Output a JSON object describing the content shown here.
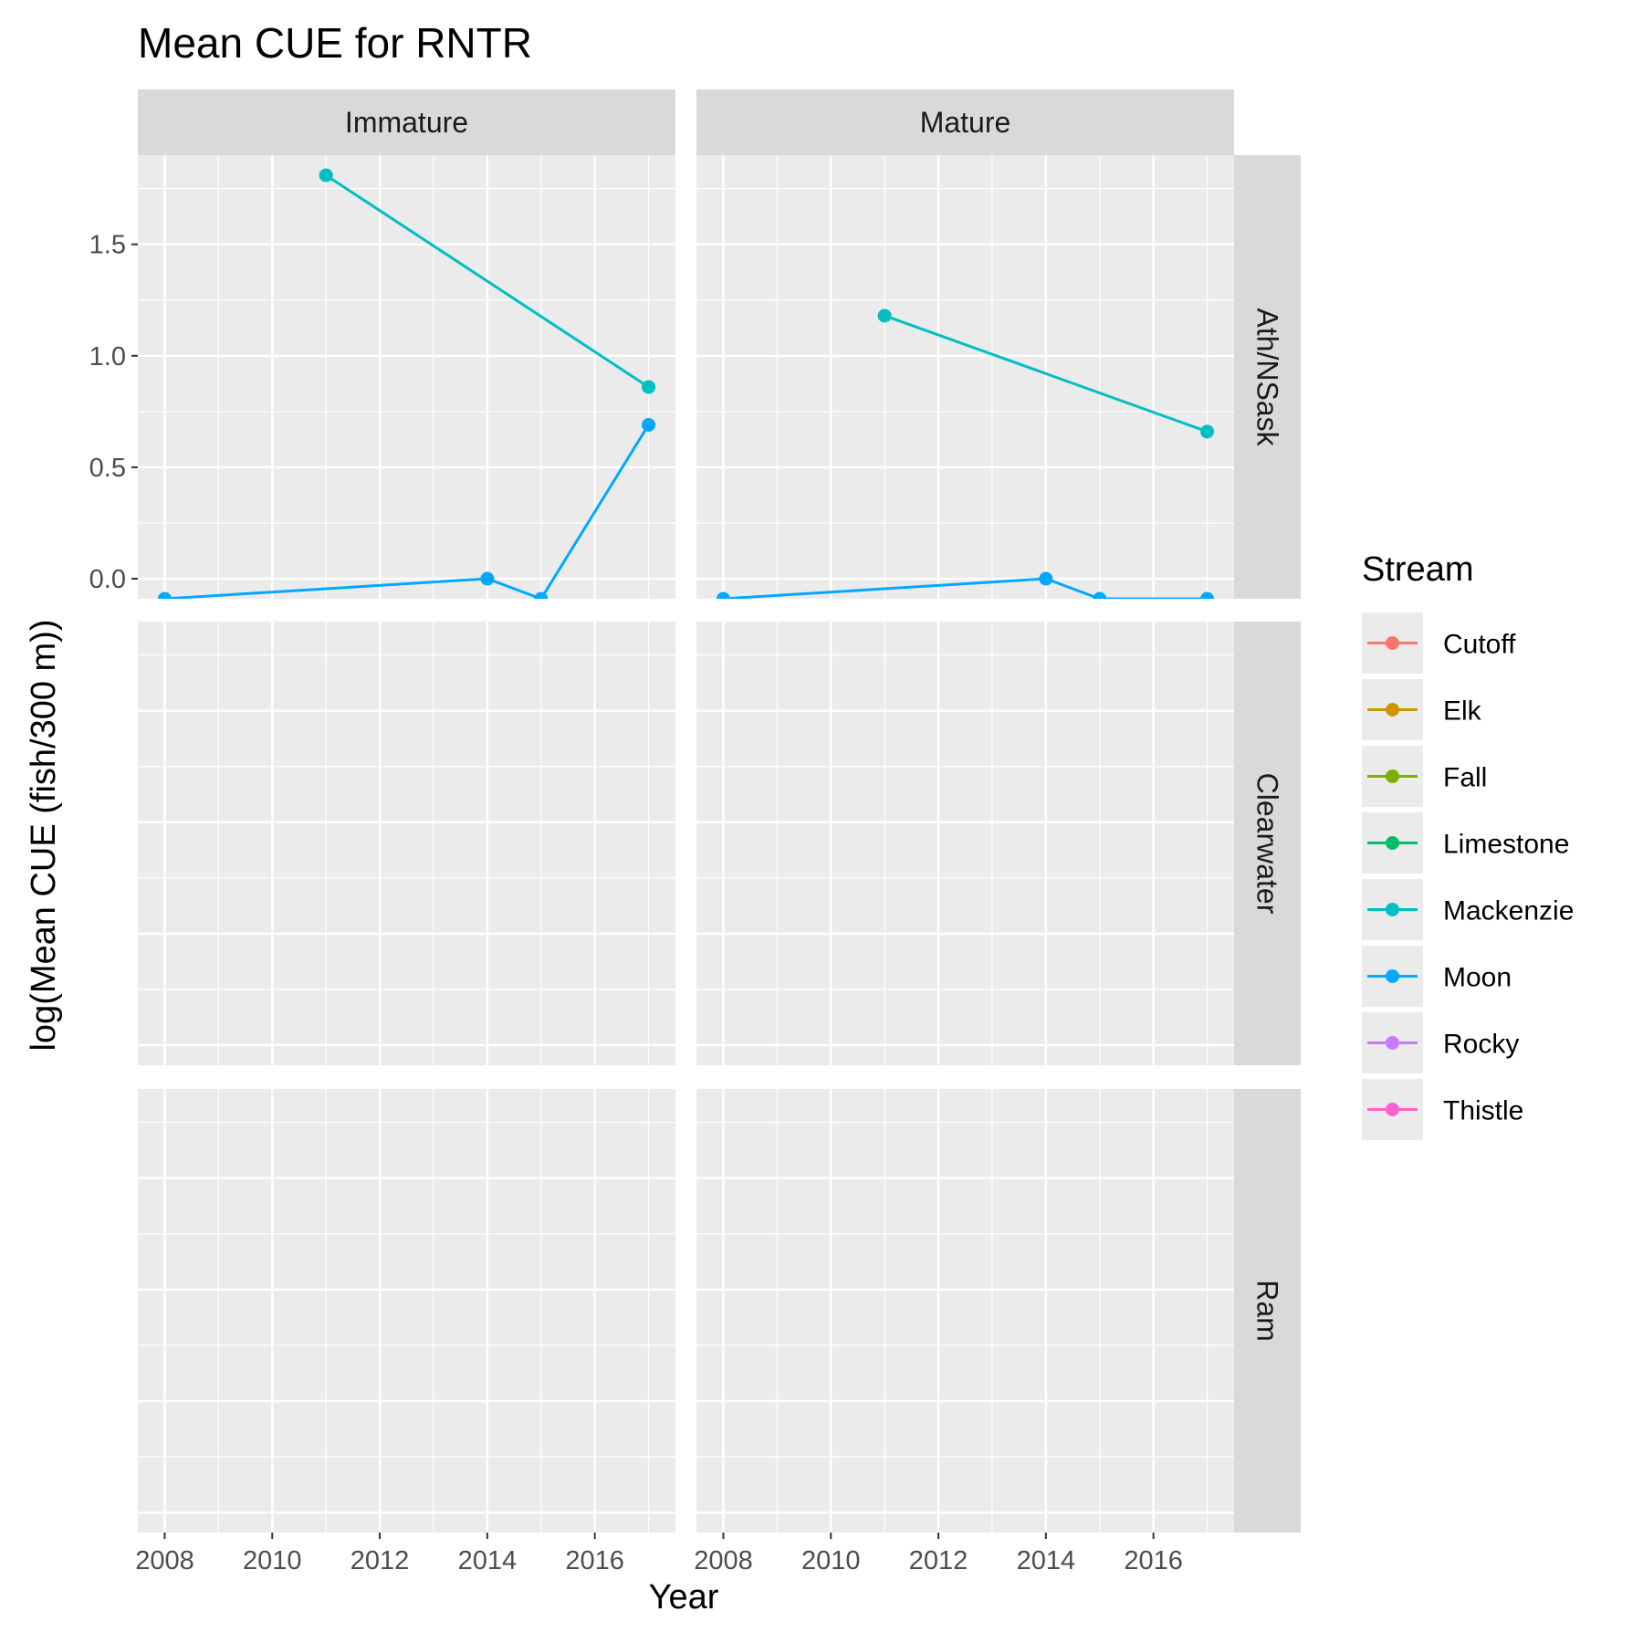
{
  "chart_data": {
    "type": "line",
    "title": "Mean CUE for RNTR",
    "xlabel": "Year",
    "ylabel": "log(Mean CUE (fish/300 m))",
    "xlim": [
      2007.5,
      2017.5
    ],
    "ylim": [
      -0.09,
      1.9
    ],
    "x_ticks": [
      2008,
      2010,
      2012,
      2014,
      2016
    ],
    "x_tick_labels": [
      "2008",
      "2010",
      "2012",
      "2014",
      "2016"
    ],
    "y_ticks": [
      0.0,
      0.5,
      1.0,
      1.5
    ],
    "y_tick_labels": [
      "0.0",
      "0.5",
      "1.0",
      "1.5"
    ],
    "grid": true,
    "facet_columns": [
      "Immature",
      "Mature"
    ],
    "facet_rows": [
      "Ath/NSask",
      "Clearwater",
      "Ram"
    ],
    "legend": {
      "title": "Stream",
      "position": "right",
      "entries": [
        {
          "name": "Cutoff",
          "color": "#F8766D"
        },
        {
          "name": "Elk",
          "color": "#CD9600"
        },
        {
          "name": "Fall",
          "color": "#7CAE00"
        },
        {
          "name": "Limestone",
          "color": "#00BE67"
        },
        {
          "name": "Mackenzie",
          "color": "#00BFC4"
        },
        {
          "name": "Moon",
          "color": "#00A9FF"
        },
        {
          "name": "Rocky",
          "color": "#C77CFF"
        },
        {
          "name": "Thistle",
          "color": "#FF61CC"
        }
      ]
    },
    "panels": [
      {
        "col": "Immature",
        "row": "Ath/NSask",
        "series": [
          {
            "stream": "Mackenzie",
            "x": [
              2011,
              2017
            ],
            "y": [
              1.81,
              0.86
            ]
          },
          {
            "stream": "Moon",
            "x": [
              2008,
              2014,
              2015,
              2017
            ],
            "y": [
              -0.09,
              0.0,
              -0.09,
              0.69
            ]
          }
        ]
      },
      {
        "col": "Mature",
        "row": "Ath/NSask",
        "series": [
          {
            "stream": "Mackenzie",
            "x": [
              2011,
              2017
            ],
            "y": [
              1.18,
              0.66
            ]
          },
          {
            "stream": "Moon",
            "x": [
              2008,
              2014,
              2015,
              2017
            ],
            "y": [
              -0.09,
              0.0,
              -0.09,
              -0.09
            ]
          }
        ]
      },
      {
        "col": "Immature",
        "row": "Clearwater",
        "series": []
      },
      {
        "col": "Mature",
        "row": "Clearwater",
        "series": []
      },
      {
        "col": "Immature",
        "row": "Ram",
        "series": []
      },
      {
        "col": "Mature",
        "row": "Ram",
        "series": []
      }
    ]
  }
}
